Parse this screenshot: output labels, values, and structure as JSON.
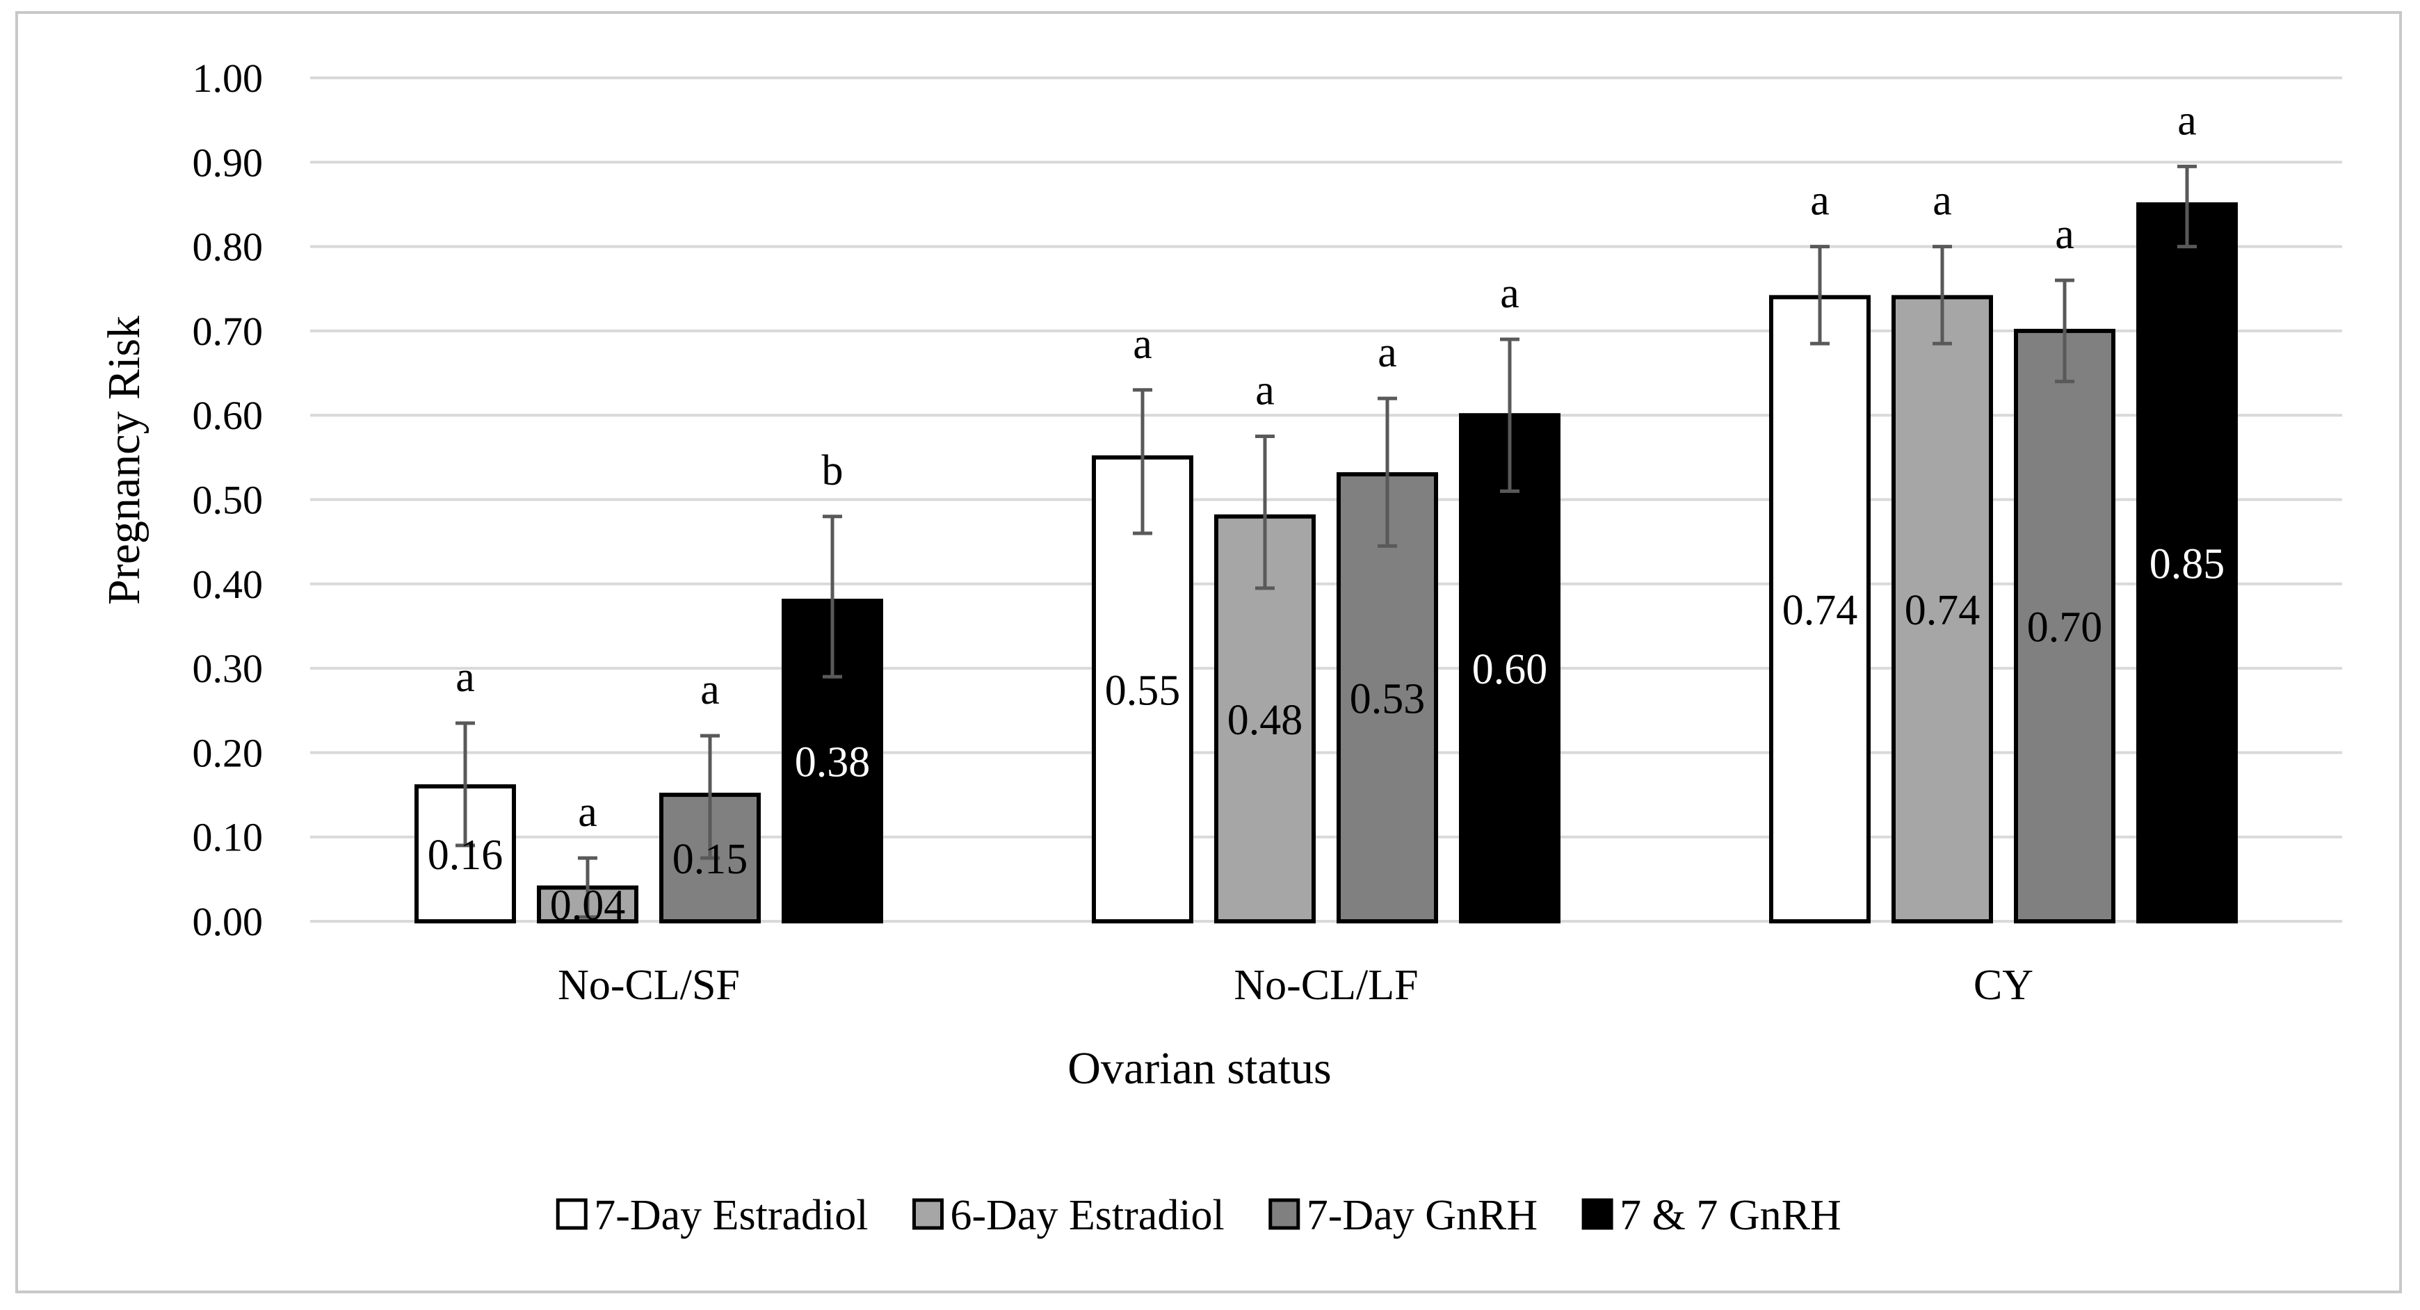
{
  "chart_data": {
    "type": "bar",
    "title": "",
    "xlabel": "Ovarian status",
    "ylabel": "Pregnancy Risk",
    "ylim": [
      0,
      1.0
    ],
    "yticks": [
      "0.00",
      "0.10",
      "0.20",
      "0.30",
      "0.40",
      "0.50",
      "0.60",
      "0.70",
      "0.80",
      "0.90",
      "1.00"
    ],
    "categories": [
      "No-CL/SF",
      "No-CL/LF",
      "CY"
    ],
    "legend_position": "bottom",
    "series": [
      {
        "name": "7-Day Estradiol",
        "color": "#ffffff",
        "label_color": "#000000",
        "values": [
          0.16,
          0.55,
          0.74
        ],
        "labels": [
          "0.16",
          "0.55",
          "0.74"
        ],
        "err_low": [
          0.09,
          0.46,
          0.685
        ],
        "err_high": [
          0.235,
          0.63,
          0.8
        ],
        "letters": [
          "a",
          "a",
          "a"
        ]
      },
      {
        "name": "6-Day Estradiol",
        "color": "#a6a6a6",
        "label_color": "#000000",
        "values": [
          0.04,
          0.48,
          0.74
        ],
        "labels": [
          "0.04",
          "0.48",
          "0.74"
        ],
        "err_low": [
          0.005,
          0.395,
          0.685
        ],
        "err_high": [
          0.075,
          0.575,
          0.8
        ],
        "letters": [
          "a",
          "a",
          "a"
        ]
      },
      {
        "name": "7-Day GnRH",
        "color": "#808080",
        "label_color": "#000000",
        "values": [
          0.15,
          0.53,
          0.7
        ],
        "labels": [
          "0.15",
          "0.53",
          "0.70"
        ],
        "err_low": [
          0.075,
          0.445,
          0.64
        ],
        "err_high": [
          0.22,
          0.62,
          0.76
        ],
        "letters": [
          "a",
          "a",
          "a"
        ]
      },
      {
        "name": "7 & 7 GnRH",
        "color": "#000000",
        "label_color": "#ffffff",
        "values": [
          0.38,
          0.6,
          0.85
        ],
        "labels": [
          "0.38",
          "0.60",
          "0.85"
        ],
        "err_low": [
          0.29,
          0.51,
          0.8
        ],
        "err_high": [
          0.48,
          0.69,
          0.895
        ],
        "letters": [
          "b",
          "a",
          "a"
        ]
      }
    ]
  }
}
